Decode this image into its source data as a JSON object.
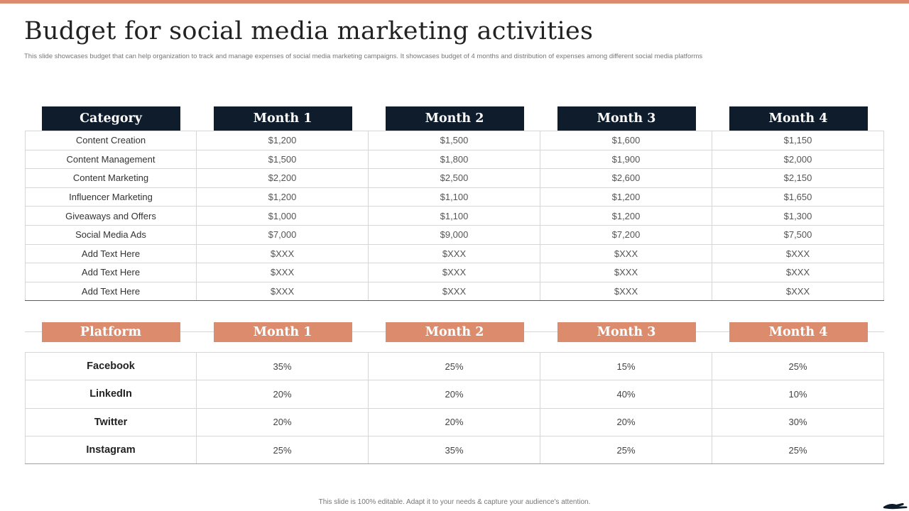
{
  "title": "Budget for social media marketing activities",
  "subtitle": "This slide showcases budget that can help organization to track and manage expenses of social media marketing campaigns. It showcases budget of 4 months and distribution of expenses among different social media platforms",
  "budget_table": {
    "headers": [
      "Category",
      "Month 1",
      "Month 2",
      "Month 3",
      "Month 4"
    ],
    "rows": [
      [
        "Content Creation",
        "$1,200",
        "$1,500",
        "$1,600",
        "$1,150"
      ],
      [
        "Content Management",
        "$1,500",
        "$1,800",
        "$1,900",
        "$2,000"
      ],
      [
        "Content Marketing",
        "$2,200",
        "$2,500",
        "$2,600",
        "$2,150"
      ],
      [
        "Influencer Marketing",
        "$1,200",
        "$1,100",
        "$1,200",
        "$1,650"
      ],
      [
        "Giveaways and Offers",
        "$1,000",
        "$1,100",
        "$1,200",
        "$1,300"
      ],
      [
        "Social Media Ads",
        "$7,000",
        "$9,000",
        "$7,200",
        "$7,500"
      ],
      [
        "Add Text Here",
        "$XXX",
        "$XXX",
        "$XXX",
        "$XXX"
      ],
      [
        "Add Text Here",
        "$XXX",
        "$XXX",
        "$XXX",
        "$XXX"
      ],
      [
        "Add Text Here",
        "$XXX",
        "$XXX",
        "$XXX",
        "$XXX"
      ]
    ]
  },
  "platform_table": {
    "headers": [
      "Platform",
      "Month 1",
      "Month 2",
      "Month 3",
      "Month 4"
    ],
    "rows": [
      [
        "Facebook",
        "35%",
        "25%",
        "15%",
        "25%"
      ],
      [
        "LinkedIn",
        "20%",
        "20%",
        "40%",
        "10%"
      ],
      [
        "Twitter",
        "20%",
        "20%",
        "20%",
        "30%"
      ],
      [
        "Instagram",
        "25%",
        "35%",
        "25%",
        "25%"
      ]
    ]
  },
  "footer": "This slide is 100% editable. Adapt it to your needs & capture your audience's attention.",
  "colors": {
    "accent": "#dc8c6c",
    "dark_header": "#0e1c2b"
  },
  "icons": {
    "corner": "hand-icon"
  }
}
